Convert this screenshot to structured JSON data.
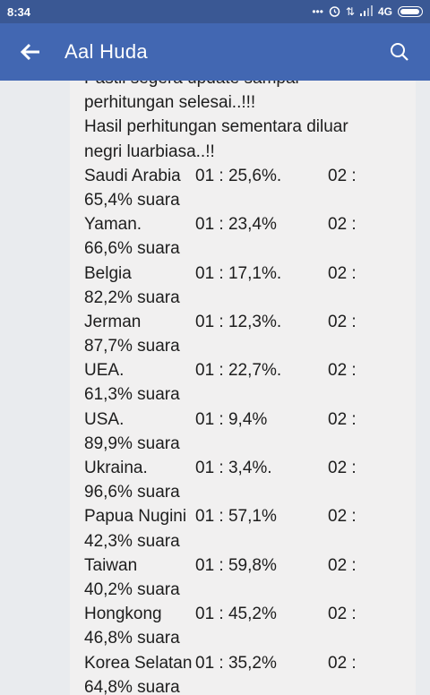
{
  "status_bar": {
    "time": "8:34",
    "network": "4G"
  },
  "app_bar": {
    "title": "Aal Huda",
    "back_icon": "arrow-left-icon",
    "search_icon": "search-icon"
  },
  "message": {
    "intro": [
      "Pastii segera update sampai",
      "perhitungan selesai..!!!",
      "Hasil perhitungan sementara diluar",
      "negri luarbiasa..!!"
    ],
    "results": [
      {
        "country": "Saudi Arabia",
        "c01": "01  : 25,6%.",
        "c02": "02 :",
        "suara": "65,4% suara"
      },
      {
        "country": "Yaman.",
        "c01": "01  : 23,4%",
        "c02": "02 :",
        "suara": "66,6% suara"
      },
      {
        "country": "Belgia",
        "c01": "01  : 17,1%.",
        "c02": "02 :",
        "suara": "82,2% suara"
      },
      {
        "country": "Jerman",
        "c01": "01  : 12,3%.",
        "c02": "02 :",
        "suara": "87,7% suara"
      },
      {
        "country": "UEA.",
        "c01": "01  :  22,7%.",
        "c02": "02 :",
        "suara": "61,3% suara"
      },
      {
        "country": "USA.",
        "c01": "01  :  9,4%",
        "c02": "02 :",
        "suara": "89,9% suara"
      },
      {
        "country": "Ukraina.",
        "c01": "01  :  3,4%.",
        "c02": "02 :",
        "suara": "96,6% suara"
      },
      {
        "country": "Papua Nugini",
        "c01": "01 :  57,1%",
        "c02": "02 :",
        "suara": "42,3% suara"
      },
      {
        "country": "Taiwan",
        "c01": "01  :  59,8%",
        "c02": "02 :",
        "suara": "40,2% suara"
      },
      {
        "country": "Hongkong",
        "c01": "01  :  45,2%",
        "c02": "02 :",
        "suara": "46,8% suara"
      },
      {
        "country": "Korea Selatan",
        "c01": "01 : 35,2%",
        "c02": "02 :",
        "suara": "64,8% suara"
      }
    ]
  }
}
